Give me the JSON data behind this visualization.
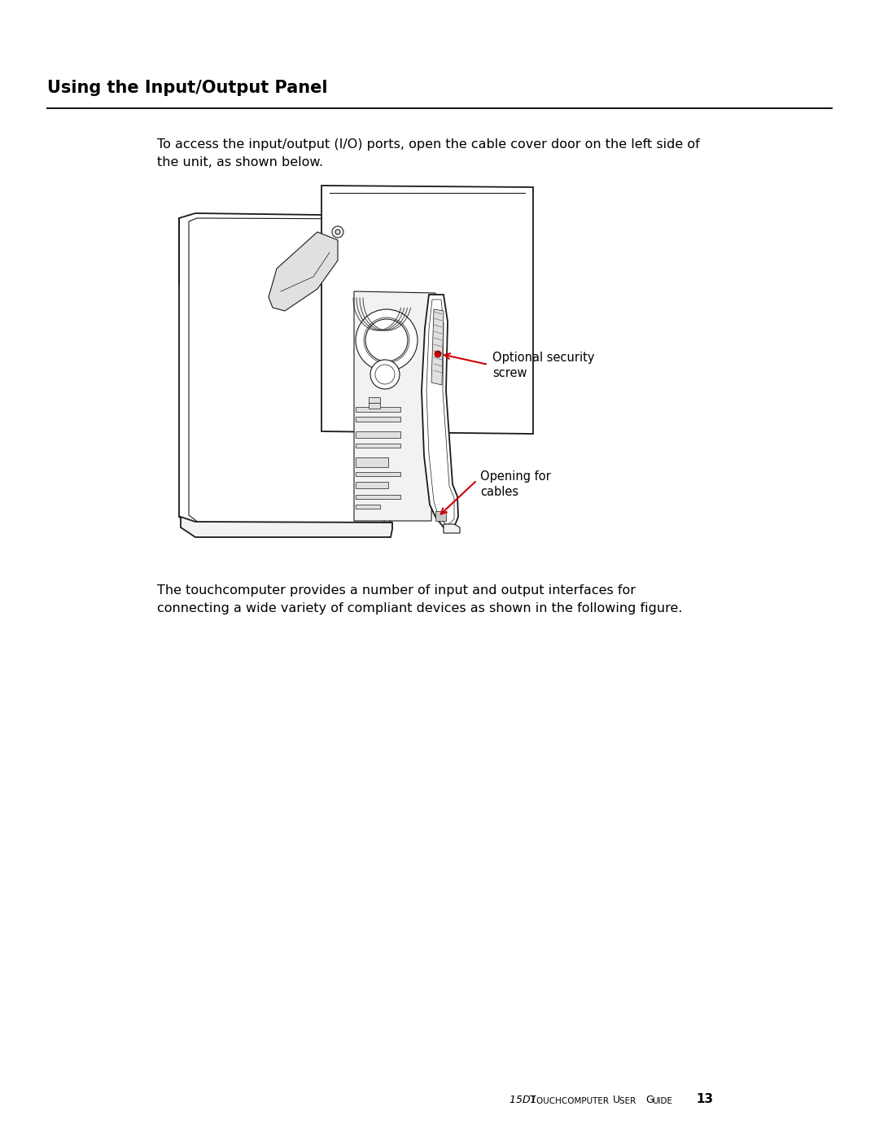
{
  "title": "Using the Input/Output Panel",
  "bg_color": "#ffffff",
  "title_fontsize": 15,
  "body_fontsize": 11.5,
  "footer_left": "15D1 T",
  "footer_mid": "OUCHCOMPUTER",
  "footer_label": " U",
  "footer_label2": "SER",
  "footer_label3": " G",
  "footer_label4": "UIDE",
  "footer_page": "13",
  "para1_line1": "To access the input/output (I/O) ports, open the cable cover door on the left side of",
  "para1_line2": "the unit, as shown below.",
  "para2_line1": "The touchcomputer provides a number of input and output interfaces for",
  "para2_line2": "connecting a wide variety of compliant devices as shown in the following figure.",
  "label1_line1": "Optional security",
  "label1_line2": "screw",
  "label2_line1": "Opening for",
  "label2_line2": "cables",
  "arrow_color": "#cc0000",
  "text_color": "#000000",
  "edge_color": "#1a1a1a",
  "fill_white": "#ffffff",
  "fill_light": "#f2f2f2",
  "fill_medium": "#e0e0e0",
  "fill_dark": "#c8c8c8"
}
